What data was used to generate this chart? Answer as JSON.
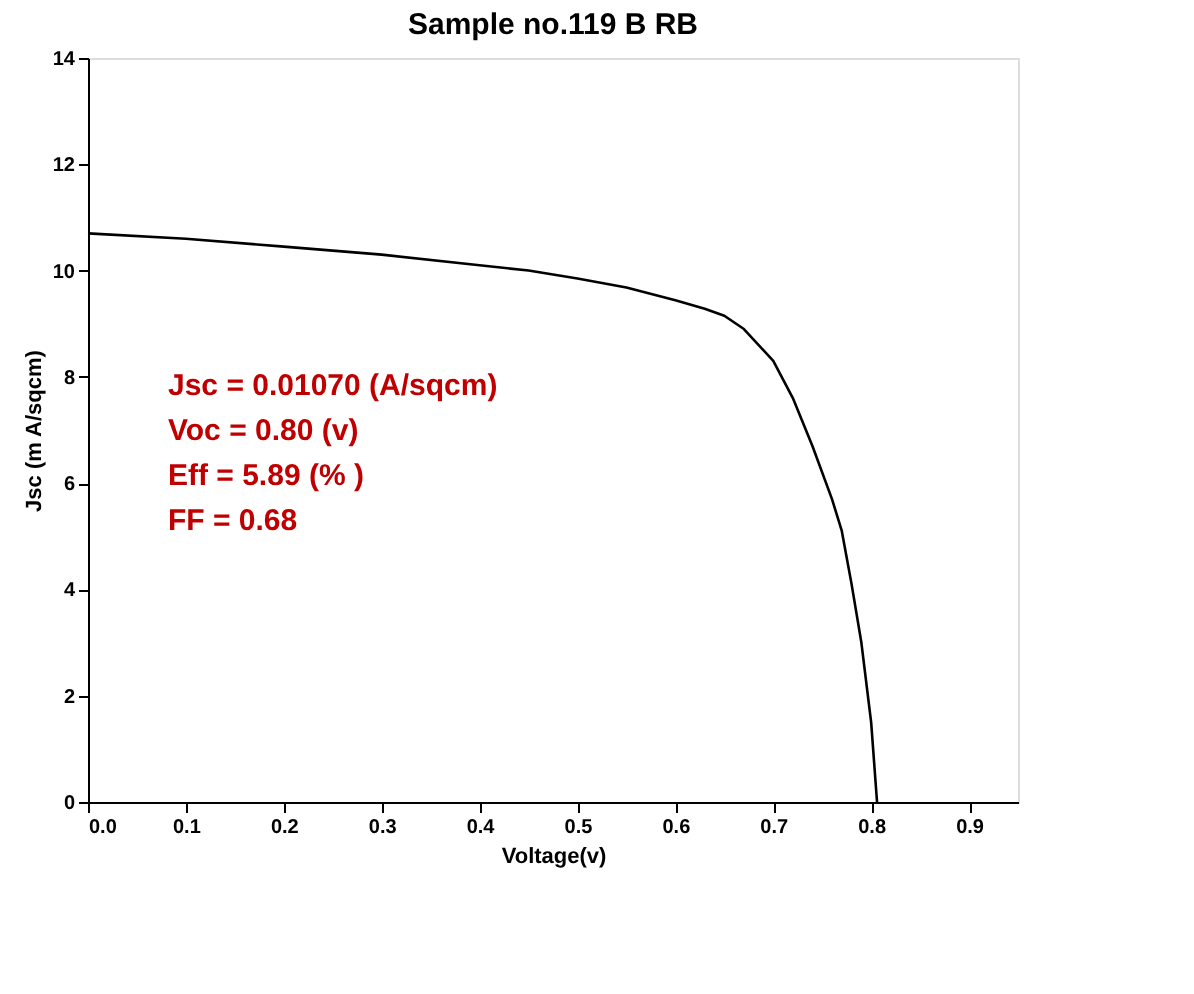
{
  "chart_data": {
    "type": "line",
    "title": "Sample no.119 B RB",
    "xlabel": "Voltage(v)",
    "ylabel": "Jsc (m A/sqcm)",
    "x": [
      0,
      0.1,
      0.2,
      0.3,
      0.4,
      0.45,
      0.5,
      0.55,
      0.6,
      0.63,
      0.65,
      0.67,
      0.7,
      0.72,
      0.74,
      0.76,
      0.77,
      0.78,
      0.79,
      0.8,
      0.806
    ],
    "series": [
      {
        "color": "#000000",
        "values": [
          10.7,
          10.6,
          10.45,
          10.3,
          10.1,
          10.0,
          9.85,
          9.68,
          9.44,
          9.28,
          9.15,
          8.9,
          8.3,
          7.6,
          6.7,
          5.7,
          5.1,
          4.1,
          3.0,
          1.5,
          0
        ]
      }
    ],
    "xlim": [
      0,
      0.95
    ],
    "xticks": [
      {
        "value": 0,
        "label": "0.0"
      },
      0.1,
      0.2,
      0.3,
      0.4,
      0.5,
      0.6,
      0.7,
      0.8,
      0.9
    ],
    "ylim": [
      0,
      14
    ],
    "yticks": [
      0,
      2,
      4,
      6,
      8,
      10,
      12,
      14
    ],
    "grid": false,
    "marker": "none",
    "line_style": "solid",
    "annotations": [
      "Jsc = 0.01070 (A/sqcm)",
      "Voc = 0.80 (v)",
      "Eff = 5.89 (% )",
      "FF = 0.68"
    ]
  }
}
